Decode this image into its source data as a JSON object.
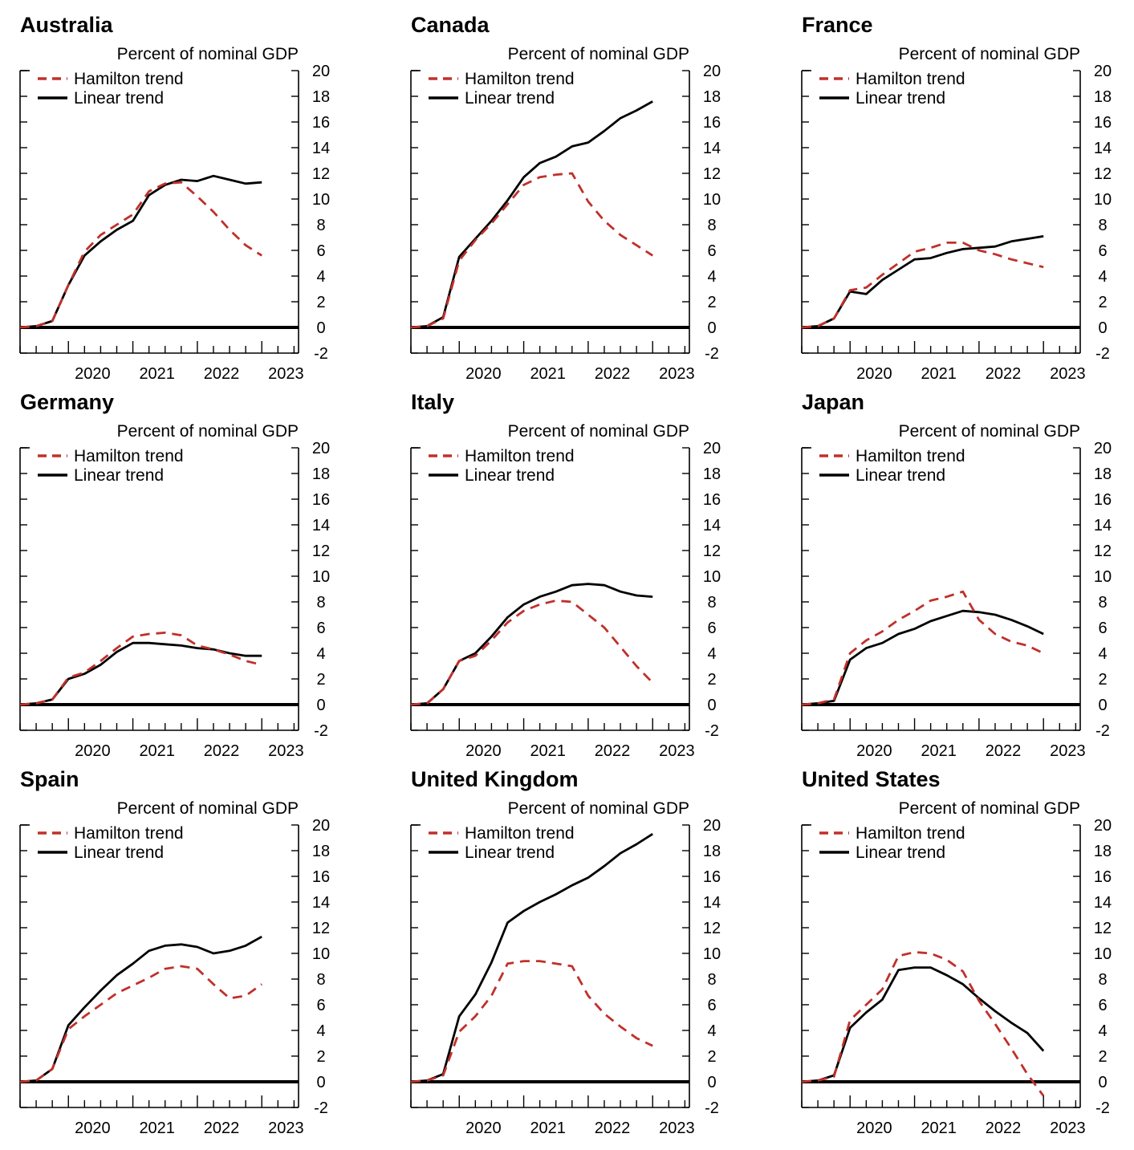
{
  "colors": {
    "hamilton": "#c0302b",
    "linear": "#000000",
    "axis": "#000000"
  },
  "chart_data": [
    {
      "type": "line",
      "title": "Australia",
      "ylabel": "Percent of nominal GDP",
      "x": [
        2019.25,
        2019.5,
        2019.75,
        2020.0,
        2020.25,
        2020.5,
        2020.75,
        2021.0,
        2021.25,
        2021.5,
        2021.75,
        2022.0,
        2022.25,
        2022.5,
        2022.75,
        2023.0
      ],
      "xticks": [
        "2020",
        "2021",
        "2022",
        "2023"
      ],
      "xlim": [
        2019.25,
        2023.57
      ],
      "ylim": [
        -2,
        20
      ],
      "yticks": [
        -2,
        0,
        2,
        4,
        6,
        8,
        10,
        12,
        14,
        16,
        18,
        20
      ],
      "legend": [
        "Hamilton trend",
        "Linear trend"
      ],
      "legend_position": "top-left",
      "series": [
        {
          "name": "Hamilton trend",
          "style": "dashed",
          "values": [
            0,
            0.1,
            0.5,
            3.3,
            5.9,
            7.2,
            8.0,
            8.8,
            10.6,
            11.2,
            11.3,
            10.2,
            9.0,
            7.6,
            6.4,
            5.6
          ]
        },
        {
          "name": "Linear trend",
          "style": "solid",
          "values": [
            0,
            0.1,
            0.5,
            3.3,
            5.6,
            6.7,
            7.6,
            8.3,
            10.3,
            11.1,
            11.5,
            11.4,
            11.8,
            11.5,
            11.2,
            11.3
          ]
        }
      ]
    },
    {
      "type": "line",
      "title": "Canada",
      "ylabel": "Percent of nominal GDP",
      "x": [
        2019.25,
        2019.5,
        2019.75,
        2020.0,
        2020.25,
        2020.5,
        2020.75,
        2021.0,
        2021.25,
        2021.5,
        2021.75,
        2022.0,
        2022.25,
        2022.5,
        2022.75,
        2023.0
      ],
      "xticks": [
        "2020",
        "2021",
        "2022",
        "2023"
      ],
      "xlim": [
        2019.25,
        2023.57
      ],
      "ylim": [
        -2,
        20
      ],
      "yticks": [
        -2,
        0,
        2,
        4,
        6,
        8,
        10,
        12,
        14,
        16,
        18,
        20
      ],
      "legend": [
        "Hamilton trend",
        "Linear trend"
      ],
      "legend_position": "top-left",
      "series": [
        {
          "name": "Hamilton trend",
          "style": "dashed",
          "values": [
            0,
            0.1,
            0.7,
            5.2,
            6.8,
            8.1,
            9.6,
            11.1,
            11.7,
            11.9,
            12.0,
            9.8,
            8.3,
            7.2,
            6.4,
            5.6
          ]
        },
        {
          "name": "Linear trend",
          "style": "solid",
          "values": [
            0,
            0.1,
            0.8,
            5.5,
            6.9,
            8.3,
            9.9,
            11.7,
            12.8,
            13.3,
            14.1,
            14.4,
            15.3,
            16.3,
            16.9,
            17.6
          ]
        }
      ]
    },
    {
      "type": "line",
      "title": "France",
      "ylabel": "Percent of nominal GDP",
      "x": [
        2019.25,
        2019.5,
        2019.75,
        2020.0,
        2020.25,
        2020.5,
        2020.75,
        2021.0,
        2021.25,
        2021.5,
        2021.75,
        2022.0,
        2022.25,
        2022.5,
        2022.75,
        2023.0
      ],
      "xticks": [
        "2020",
        "2021",
        "2022",
        "2023"
      ],
      "xlim": [
        2019.25,
        2023.57
      ],
      "ylim": [
        -2,
        20
      ],
      "yticks": [
        -2,
        0,
        2,
        4,
        6,
        8,
        10,
        12,
        14,
        16,
        18,
        20
      ],
      "legend": [
        "Hamilton trend",
        "Linear trend"
      ],
      "legend_position": "top-left",
      "series": [
        {
          "name": "Hamilton trend",
          "style": "dashed",
          "values": [
            0,
            0.1,
            0.7,
            2.9,
            3.1,
            4.1,
            5.0,
            5.9,
            6.2,
            6.6,
            6.6,
            6.0,
            5.7,
            5.3,
            5.0,
            4.7
          ]
        },
        {
          "name": "Linear trend",
          "style": "solid",
          "values": [
            0,
            0.1,
            0.7,
            2.8,
            2.6,
            3.7,
            4.5,
            5.3,
            5.4,
            5.8,
            6.1,
            6.2,
            6.3,
            6.7,
            6.9,
            7.1
          ]
        }
      ]
    },
    {
      "type": "line",
      "title": "Germany",
      "ylabel": "Percent of nominal GDP",
      "x": [
        2019.25,
        2019.5,
        2019.75,
        2020.0,
        2020.25,
        2020.5,
        2020.75,
        2021.0,
        2021.25,
        2021.5,
        2021.75,
        2022.0,
        2022.25,
        2022.5,
        2022.75,
        2023.0
      ],
      "xticks": [
        "2020",
        "2021",
        "2022",
        "2023"
      ],
      "xlim": [
        2019.25,
        2023.57
      ],
      "ylim": [
        -2,
        20
      ],
      "yticks": [
        -2,
        0,
        2,
        4,
        6,
        8,
        10,
        12,
        14,
        16,
        18,
        20
      ],
      "legend": [
        "Hamilton trend",
        "Linear trend"
      ],
      "legend_position": "top-left",
      "series": [
        {
          "name": "Hamilton trend",
          "style": "dashed",
          "values": [
            0,
            0.1,
            0.4,
            2.1,
            2.5,
            3.4,
            4.4,
            5.3,
            5.5,
            5.6,
            5.4,
            4.6,
            4.3,
            3.9,
            3.4,
            3.1
          ]
        },
        {
          "name": "Linear trend",
          "style": "solid",
          "values": [
            0,
            0.1,
            0.4,
            2.0,
            2.4,
            3.1,
            4.1,
            4.8,
            4.8,
            4.7,
            4.6,
            4.4,
            4.3,
            4.0,
            3.8,
            3.8
          ]
        }
      ]
    },
    {
      "type": "line",
      "title": "Italy",
      "ylabel": "Percent of nominal GDP",
      "x": [
        2019.25,
        2019.5,
        2019.75,
        2020.0,
        2020.25,
        2020.5,
        2020.75,
        2021.0,
        2021.25,
        2021.5,
        2021.75,
        2022.0,
        2022.25,
        2022.5,
        2022.75,
        2023.0
      ],
      "xticks": [
        "2020",
        "2021",
        "2022",
        "2023"
      ],
      "xlim": [
        2019.25,
        2023.57
      ],
      "ylim": [
        -2,
        20
      ],
      "yticks": [
        -2,
        0,
        2,
        4,
        6,
        8,
        10,
        12,
        14,
        16,
        18,
        20
      ],
      "legend": [
        "Hamilton trend",
        "Linear trend"
      ],
      "legend_position": "top-left",
      "series": [
        {
          "name": "Hamilton trend",
          "style": "dashed",
          "values": [
            0,
            0.1,
            1.2,
            3.4,
            3.8,
            5.0,
            6.4,
            7.3,
            7.8,
            8.1,
            8.0,
            7.0,
            6.0,
            4.5,
            3.0,
            1.7
          ]
        },
        {
          "name": "Linear trend",
          "style": "solid",
          "values": [
            0,
            0.1,
            1.2,
            3.4,
            4.0,
            5.3,
            6.8,
            7.8,
            8.4,
            8.8,
            9.3,
            9.4,
            9.3,
            8.8,
            8.5,
            8.4
          ]
        }
      ]
    },
    {
      "type": "line",
      "title": "Japan",
      "ylabel": "Percent of nominal GDP",
      "x": [
        2019.25,
        2019.5,
        2019.75,
        2020.0,
        2020.25,
        2020.5,
        2020.75,
        2021.0,
        2021.25,
        2021.5,
        2021.75,
        2022.0,
        2022.25,
        2022.5,
        2022.75,
        2023.0
      ],
      "xticks": [
        "2020",
        "2021",
        "2022",
        "2023"
      ],
      "xlim": [
        2019.25,
        2023.57
      ],
      "ylim": [
        -2,
        20
      ],
      "yticks": [
        -2,
        0,
        2,
        4,
        6,
        8,
        10,
        12,
        14,
        16,
        18,
        20
      ],
      "legend": [
        "Hamilton trend",
        "Linear trend"
      ],
      "legend_position": "top-left",
      "series": [
        {
          "name": "Hamilton trend",
          "style": "dashed",
          "values": [
            0,
            0.1,
            0.4,
            4.0,
            5.0,
            5.7,
            6.6,
            7.3,
            8.1,
            8.4,
            8.8,
            6.6,
            5.5,
            4.9,
            4.6,
            4.0
          ]
        },
        {
          "name": "Linear trend",
          "style": "solid",
          "values": [
            0,
            0.1,
            0.3,
            3.5,
            4.4,
            4.8,
            5.5,
            5.9,
            6.5,
            6.9,
            7.3,
            7.2,
            7.0,
            6.6,
            6.1,
            5.5
          ]
        }
      ]
    },
    {
      "type": "line",
      "title": "Spain",
      "ylabel": "Percent of nominal GDP",
      "x": [
        2019.25,
        2019.5,
        2019.75,
        2020.0,
        2020.25,
        2020.5,
        2020.75,
        2021.0,
        2021.25,
        2021.5,
        2021.75,
        2022.0,
        2022.25,
        2022.5,
        2022.75,
        2023.0
      ],
      "xticks": [
        "2020",
        "2021",
        "2022",
        "2023"
      ],
      "xlim": [
        2019.25,
        2023.57
      ],
      "ylim": [
        -2,
        20
      ],
      "yticks": [
        -2,
        0,
        2,
        4,
        6,
        8,
        10,
        12,
        14,
        16,
        18,
        20
      ],
      "legend": [
        "Hamilton trend",
        "Linear trend"
      ],
      "legend_position": "top-left",
      "series": [
        {
          "name": "Hamilton trend",
          "style": "dashed",
          "values": [
            0,
            0.1,
            1.0,
            4.1,
            5.1,
            6.0,
            6.9,
            7.5,
            8.1,
            8.8,
            9.0,
            8.8,
            7.6,
            6.5,
            6.7,
            7.6
          ]
        },
        {
          "name": "Linear trend",
          "style": "solid",
          "values": [
            0,
            0.1,
            1.0,
            4.4,
            5.8,
            7.1,
            8.3,
            9.2,
            10.2,
            10.6,
            10.7,
            10.5,
            10.0,
            10.2,
            10.6,
            11.3
          ]
        }
      ]
    },
    {
      "type": "line",
      "title": "United Kingdom",
      "ylabel": "Percent of nominal GDP",
      "x": [
        2019.25,
        2019.5,
        2019.75,
        2020.0,
        2020.25,
        2020.5,
        2020.75,
        2021.0,
        2021.25,
        2021.5,
        2021.75,
        2022.0,
        2022.25,
        2022.5,
        2022.75,
        2023.0
      ],
      "xticks": [
        "2020",
        "2021",
        "2022",
        "2023"
      ],
      "xlim": [
        2019.25,
        2023.57
      ],
      "ylim": [
        -2,
        20
      ],
      "yticks": [
        -2,
        0,
        2,
        4,
        6,
        8,
        10,
        12,
        14,
        16,
        18,
        20
      ],
      "legend": [
        "Hamilton trend",
        "Linear trend"
      ],
      "legend_position": "top-left",
      "series": [
        {
          "name": "Hamilton trend",
          "style": "dashed",
          "values": [
            0,
            0.1,
            0.5,
            3.9,
            5.1,
            6.7,
            9.2,
            9.4,
            9.4,
            9.2,
            9.0,
            6.7,
            5.3,
            4.3,
            3.4,
            2.8
          ]
        },
        {
          "name": "Linear trend",
          "style": "solid",
          "values": [
            0,
            0.1,
            0.6,
            5.1,
            6.8,
            9.3,
            12.4,
            13.3,
            14.0,
            14.6,
            15.3,
            15.9,
            16.8,
            17.8,
            18.5,
            19.3
          ]
        }
      ]
    },
    {
      "type": "line",
      "title": "United States",
      "ylabel": "Percent of nominal GDP",
      "x": [
        2019.25,
        2019.5,
        2019.75,
        2020.0,
        2020.25,
        2020.5,
        2020.75,
        2021.0,
        2021.25,
        2021.5,
        2021.75,
        2022.0,
        2022.25,
        2022.5,
        2022.75,
        2023.0
      ],
      "xticks": [
        "2020",
        "2021",
        "2022",
        "2023"
      ],
      "xlim": [
        2019.25,
        2023.57
      ],
      "ylim": [
        -2,
        20
      ],
      "yticks": [
        -2,
        0,
        2,
        4,
        6,
        8,
        10,
        12,
        14,
        16,
        18,
        20
      ],
      "legend": [
        "Hamilton trend",
        "Linear trend"
      ],
      "legend_position": "top-left",
      "series": [
        {
          "name": "Hamilton trend",
          "style": "dashed",
          "values": [
            0,
            0.1,
            0.4,
            4.8,
            6.0,
            7.2,
            9.8,
            10.1,
            10.0,
            9.5,
            8.6,
            6.3,
            4.5,
            2.6,
            0.6,
            -1.1
          ]
        },
        {
          "name": "Linear trend",
          "style": "solid",
          "values": [
            0,
            0.1,
            0.5,
            4.2,
            5.4,
            6.4,
            8.7,
            8.9,
            8.9,
            8.3,
            7.6,
            6.5,
            5.5,
            4.6,
            3.8,
            2.4
          ]
        }
      ]
    }
  ]
}
